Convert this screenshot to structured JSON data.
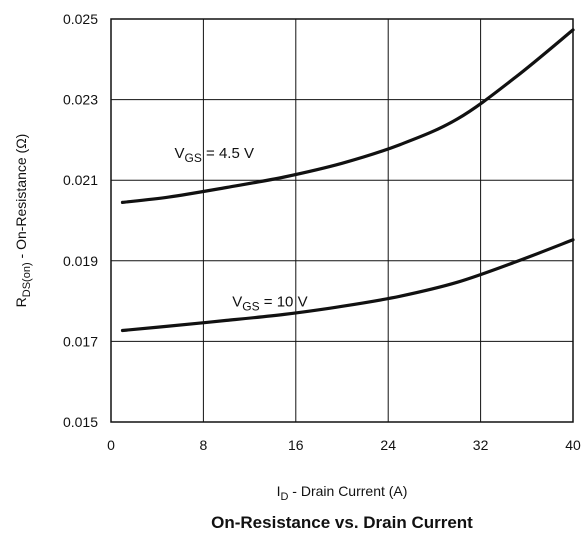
{
  "chart_data": {
    "type": "line",
    "title": "On-Resistance vs. Drain Current",
    "xlabel": {
      "main": "I",
      "sub": "D",
      "rest": " - Drain Current (A)"
    },
    "ylabel": {
      "main": "R",
      "sub": "DS(on)",
      "rest": " - On-Resistance (Ω)"
    },
    "xlim": [
      0,
      40
    ],
    "ylim": [
      0.015,
      0.025
    ],
    "x_ticks": [
      0,
      8,
      16,
      24,
      32,
      40
    ],
    "x_tick_labels": [
      "0",
      "8",
      "16",
      "24",
      "32",
      "40"
    ],
    "y_ticks": [
      0.015,
      0.017,
      0.019,
      0.021,
      0.023,
      0.025
    ],
    "y_tick_labels": [
      "0.015",
      "0.017",
      "0.019",
      "0.021",
      "0.023",
      "0.025"
    ],
    "grid": true,
    "series": [
      {
        "label": {
          "main": "V",
          "sub": "GS",
          "rest": " = 4.5 V"
        },
        "x": [
          1,
          5,
          10,
          15,
          20,
          25,
          30,
          35,
          40
        ],
        "y": [
          0.02045,
          0.02058,
          0.02082,
          0.02108,
          0.02142,
          0.02188,
          0.02252,
          0.02355,
          0.02473
        ]
      },
      {
        "label": {
          "main": "V",
          "sub": "GS",
          "rest": " = 10 V"
        },
        "x": [
          1,
          5,
          10,
          15,
          20,
          25,
          30,
          35,
          40
        ],
        "y": [
          0.01727,
          0.01738,
          0.01752,
          0.01767,
          0.01787,
          0.01812,
          0.01847,
          0.01897,
          0.01952
        ]
      }
    ]
  }
}
